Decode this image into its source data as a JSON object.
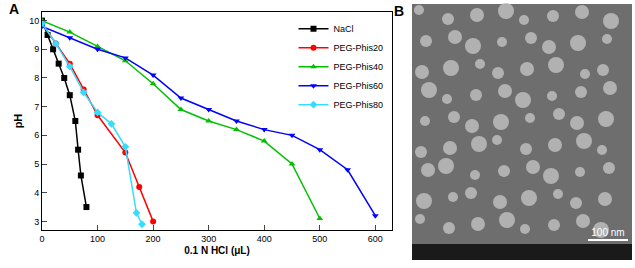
{
  "chart_data": {
    "type": "line",
    "annotations": [
      "A"
    ],
    "x_label": "0.1 N HCl (μL)",
    "y_label": "pH",
    "xlim": [
      0,
      630
    ],
    "ylim": [
      2.7,
      10.3
    ],
    "xticks": [
      0,
      100,
      200,
      300,
      400,
      500,
      600
    ],
    "yticks": [
      3,
      4,
      5,
      6,
      7,
      8,
      9,
      10
    ],
    "grid": false,
    "legend": "upper right",
    "series": [
      {
        "name": "NaCl",
        "color": "#000000",
        "marker": "square",
        "x": [
          0,
          10,
          20,
          30,
          40,
          50,
          60,
          65,
          70,
          80
        ],
        "values": [
          10.0,
          9.5,
          9.0,
          8.5,
          8.0,
          7.4,
          6.5,
          5.5,
          4.6,
          3.5
        ]
      },
      {
        "name": "PEG-Phis20",
        "color": "#ff0000",
        "marker": "circle",
        "x": [
          0,
          25,
          50,
          75,
          100,
          150,
          175,
          200
        ],
        "values": [
          9.9,
          9.2,
          8.5,
          7.6,
          6.7,
          5.4,
          4.2,
          3.0
        ]
      },
      {
        "name": "PEG-Phis40",
        "color": "#00c000",
        "marker": "triangle-up",
        "x": [
          0,
          50,
          100,
          150,
          200,
          250,
          300,
          350,
          400,
          450,
          500
        ],
        "values": [
          10.0,
          9.6,
          9.1,
          8.6,
          7.8,
          6.9,
          6.5,
          6.2,
          5.8,
          5.0,
          3.1
        ]
      },
      {
        "name": "PEG-Phis60",
        "color": "#0000ff",
        "marker": "triangle-down",
        "x": [
          0,
          50,
          100,
          150,
          200,
          250,
          300,
          350,
          400,
          450,
          500,
          550,
          600
        ],
        "values": [
          9.8,
          9.4,
          9.0,
          8.7,
          8.1,
          7.3,
          6.9,
          6.5,
          6.2,
          6.0,
          5.5,
          4.8,
          3.2
        ]
      },
      {
        "name": "PEG-Phis80",
        "color": "#33ddff",
        "marker": "diamond",
        "x": [
          0,
          25,
          50,
          75,
          100,
          125,
          150,
          170,
          180
        ],
        "values": [
          9.9,
          9.2,
          8.4,
          7.5,
          6.8,
          6.4,
          5.6,
          3.3,
          2.9
        ]
      }
    ]
  },
  "image": {
    "label": "B",
    "scale_bar": "100 nm"
  }
}
